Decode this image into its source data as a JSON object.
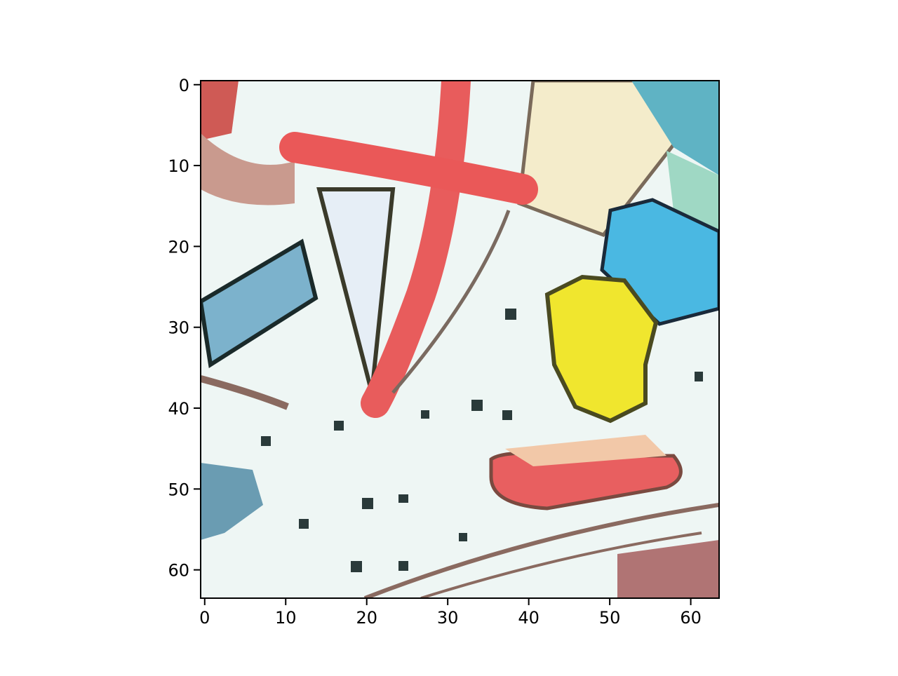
{
  "chart_data": {
    "type": "image",
    "xlim": [
      -0.5,
      63.5
    ],
    "ylim": [
      63.5,
      -0.5
    ],
    "xticks": [
      0,
      10,
      20,
      30,
      40,
      50,
      60
    ],
    "yticks": [
      0,
      10,
      20,
      30,
      40,
      50,
      60
    ]
  }
}
